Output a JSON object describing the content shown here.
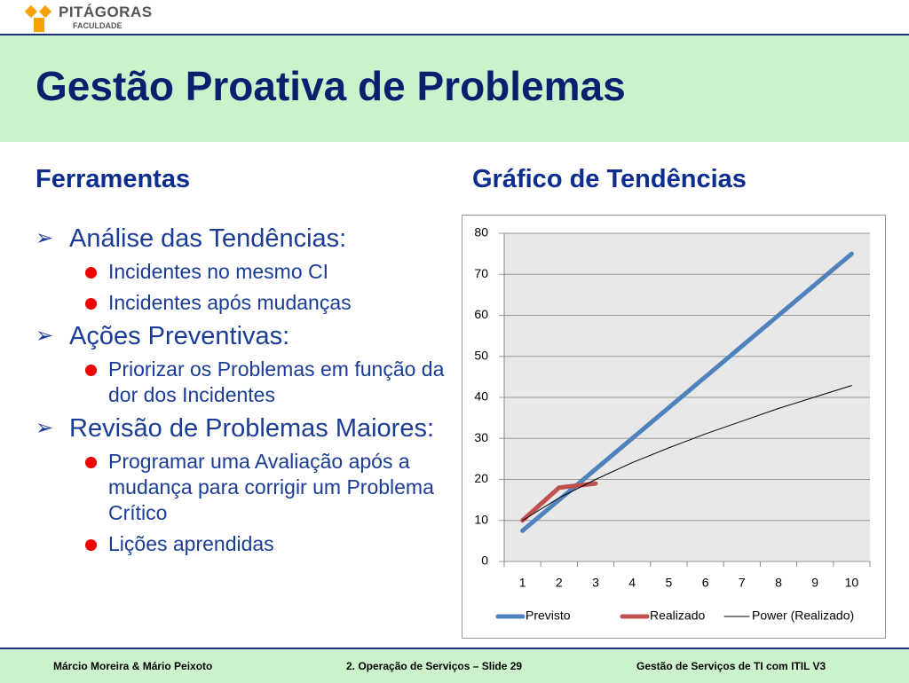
{
  "logo": {
    "name": "PITÁGORAS",
    "subtitle": "FACULDADE"
  },
  "header": {
    "title": "Gestão Proativa de Problemas"
  },
  "left": {
    "heading": "Ferramentas",
    "items": [
      {
        "text": "Análise das Tendências:",
        "subitems": [
          "Incidentes no mesmo CI",
          "Incidentes após mudanças"
        ]
      },
      {
        "text": "Ações Preventivas:",
        "subitems": [
          "Priorizar os Problemas em função da dor dos Incidentes"
        ]
      },
      {
        "text": "Revisão de Problemas Maiores:",
        "subitems": [
          "Programar uma Avaliação após a mudança para corrigir um Problema Crítico",
          "Lições aprendidas"
        ]
      }
    ]
  },
  "right": {
    "heading": "Gráfico de Tendências"
  },
  "chart_data": {
    "type": "line",
    "categories": [
      1,
      2,
      3,
      4,
      5,
      6,
      7,
      8,
      9,
      10
    ],
    "series": [
      {
        "name": "Previsto",
        "color": "#4f81bd",
        "width": 5,
        "values": [
          7.5,
          15,
          22.5,
          30,
          37.5,
          45,
          52.5,
          60,
          67.5,
          75
        ]
      },
      {
        "name": "Realizado",
        "color": "#c0504d",
        "width": 5,
        "values": [
          10,
          18,
          19,
          null,
          null,
          null,
          null,
          null,
          null,
          null
        ]
      },
      {
        "name": "Power (Realizado)",
        "color": "#000000",
        "width": 1,
        "values": [
          10,
          15.5,
          20,
          24.1,
          27.7,
          31.1,
          34.2,
          37.3,
          40.1,
          42.9
        ]
      }
    ],
    "ylim": [
      0,
      80
    ],
    "yticks": [
      0,
      10,
      20,
      30,
      40,
      50,
      60,
      70,
      80
    ],
    "grid": true,
    "legend": "bottom"
  },
  "footer": {
    "left": "Márcio Moreira & Mário Peixoto",
    "center": "2. Operação de Serviços – Slide 29",
    "right": "Gestão de Serviços de TI com ITIL V3"
  }
}
